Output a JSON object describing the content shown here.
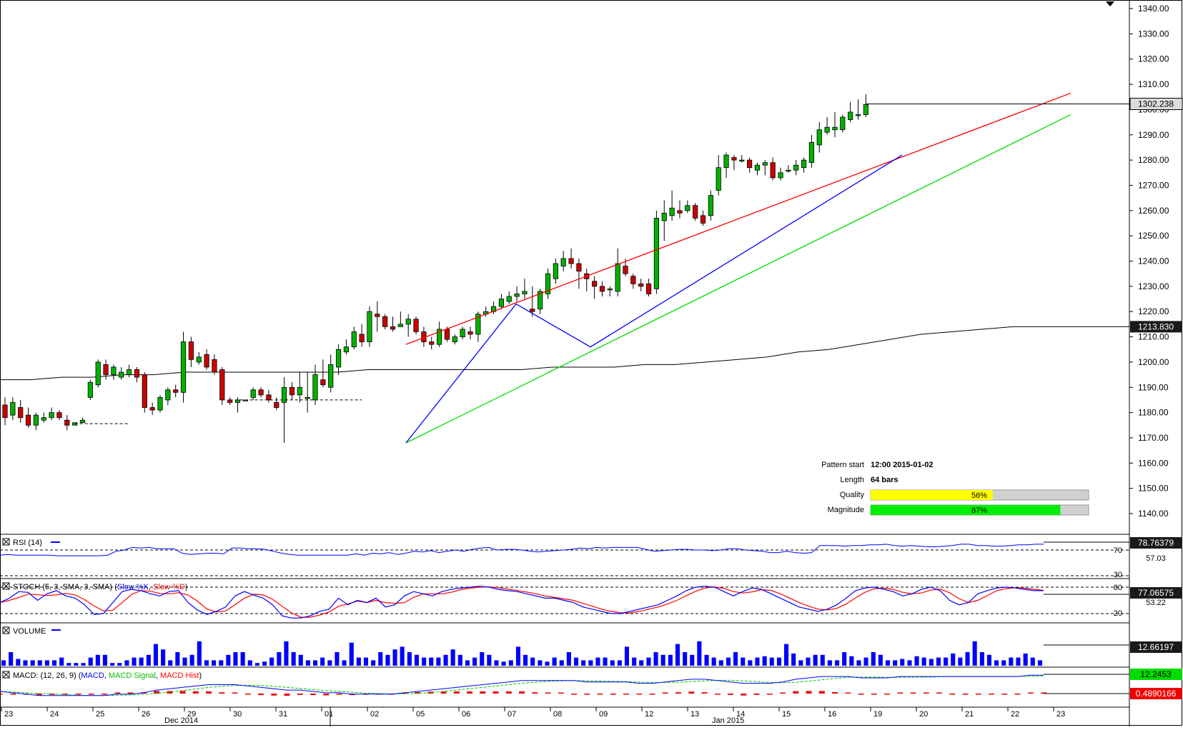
{
  "chart_data": {
    "type": "candlestick",
    "instrument_price_label": "1302.238",
    "ma_label": "1213.830",
    "y_ticks": [
      "1340.00",
      "1330.00",
      "1320.00",
      "1310.00",
      "1300.00",
      "1290.00",
      "1280.00",
      "1270.00",
      "1260.00",
      "1250.00",
      "1240.00",
      "1230.00",
      "1220.00",
      "1210.00",
      "1200.00",
      "1190.00",
      "1180.00",
      "1170.00",
      "1160.00",
      "1150.00",
      "1140.00"
    ],
    "ylim": [
      1136,
      1343
    ],
    "x_ticks": [
      "23",
      "24",
      "25",
      "26",
      "29",
      "30",
      "31",
      "01",
      "02",
      "05",
      "06",
      "07",
      "08",
      "09",
      "12",
      "13",
      "14",
      "15",
      "16",
      "19",
      "20",
      "21",
      "22",
      "23"
    ],
    "month_labels": [
      "Dec 2014",
      "Jan 2015"
    ],
    "candles": [
      [
        1183,
        1178,
        1186,
        1175
      ],
      [
        1179,
        1184,
        1186,
        1177
      ],
      [
        1182,
        1178,
        1185,
        1176
      ],
      [
        1179,
        1175,
        1182,
        1174
      ],
      [
        1175,
        1179,
        1180,
        1173
      ],
      [
        1177,
        1178,
        1180,
        1176
      ],
      [
        1178,
        1180,
        1182,
        1177
      ],
      [
        1180,
        1178,
        1181,
        1177
      ],
      [
        1177,
        1175,
        1179,
        1173
      ],
      [
        1175,
        1176,
        1176,
        1175
      ],
      [
        1176,
        1177,
        1178,
        1176
      ],
      [
        1186,
        1192,
        1193,
        1185
      ],
      [
        1191,
        1200,
        1201,
        1190
      ],
      [
        1199,
        1195,
        1201,
        1193
      ],
      [
        1195,
        1198,
        1199,
        1193
      ],
      [
        1194,
        1196,
        1198,
        1193
      ],
      [
        1195,
        1197,
        1199,
        1194
      ],
      [
        1197,
        1194,
        1198,
        1192
      ],
      [
        1195,
        1182,
        1196,
        1180
      ],
      [
        1182,
        1181,
        1184,
        1179
      ],
      [
        1181,
        1186,
        1187,
        1180
      ],
      [
        1185,
        1189,
        1190,
        1183
      ],
      [
        1189,
        1188,
        1191,
        1186
      ],
      [
        1188,
        1208,
        1212,
        1184
      ],
      [
        1208,
        1201,
        1210,
        1198
      ],
      [
        1200,
        1202,
        1204,
        1199
      ],
      [
        1203,
        1198,
        1205,
        1197
      ],
      [
        1201,
        1196,
        1203,
        1195
      ],
      [
        1197,
        1185,
        1198,
        1183
      ],
      [
        1185,
        1184,
        1186,
        1183
      ],
      [
        1184,
        1185,
        1186,
        1180
      ],
      [
        1185,
        1185,
        1185,
        1185
      ],
      [
        1186,
        1189,
        1190,
        1185
      ],
      [
        1189,
        1187,
        1190,
        1186
      ],
      [
        1187,
        1185,
        1189,
        1184
      ],
      [
        1184,
        1182,
        1186,
        1181
      ],
      [
        1184,
        1190,
        1194,
        1168
      ],
      [
        1190,
        1187,
        1192,
        1185
      ],
      [
        1187,
        1190,
        1196,
        1184
      ],
      [
        1186,
        1186,
        1196,
        1180
      ],
      [
        1185,
        1195,
        1199,
        1183
      ],
      [
        1193,
        1191,
        1201,
        1190
      ],
      [
        1190,
        1199,
        1203,
        1188
      ],
      [
        1198,
        1205,
        1207,
        1195
      ],
      [
        1204,
        1206,
        1209,
        1203
      ],
      [
        1206,
        1212,
        1214,
        1205
      ],
      [
        1211,
        1208,
        1215,
        1206
      ],
      [
        1208,
        1220,
        1222,
        1206
      ],
      [
        1219,
        1218,
        1224,
        1212
      ],
      [
        1218,
        1214,
        1219,
        1213
      ],
      [
        1214,
        1213,
        1218,
        1212
      ],
      [
        1214,
        1215,
        1220,
        1214
      ],
      [
        1215,
        1217,
        1219,
        1210
      ],
      [
        1217,
        1212,
        1218,
        1211
      ],
      [
        1212,
        1208,
        1214,
        1206
      ],
      [
        1208,
        1207,
        1210,
        1205
      ],
      [
        1207,
        1213,
        1216,
        1206
      ],
      [
        1213,
        1209,
        1214,
        1208
      ],
      [
        1208,
        1210,
        1211,
        1207
      ],
      [
        1210,
        1213,
        1214,
        1209
      ],
      [
        1212,
        1211,
        1214,
        1209
      ],
      [
        1211,
        1219,
        1220,
        1208
      ],
      [
        1219,
        1220,
        1222,
        1218
      ],
      [
        1220,
        1222,
        1224,
        1219
      ],
      [
        1222,
        1225,
        1227,
        1221
      ],
      [
        1224,
        1226,
        1228,
        1223
      ],
      [
        1226,
        1227,
        1230,
        1224
      ],
      [
        1227,
        1228,
        1233,
        1225
      ],
      [
        1221,
        1220,
        1230,
        1218
      ],
      [
        1221,
        1228,
        1229,
        1219
      ],
      [
        1227,
        1235,
        1237,
        1225
      ],
      [
        1233,
        1239,
        1241,
        1231
      ],
      [
        1238,
        1241,
        1244,
        1236
      ],
      [
        1241,
        1239,
        1245,
        1237
      ],
      [
        1239,
        1236,
        1241,
        1229
      ],
      [
        1235,
        1233,
        1237,
        1228
      ],
      [
        1232,
        1230,
        1234,
        1225
      ],
      [
        1230,
        1228,
        1232,
        1226
      ],
      [
        1229,
        1229,
        1230,
        1226
      ],
      [
        1228,
        1239,
        1245,
        1226
      ],
      [
        1238,
        1235,
        1241,
        1234
      ],
      [
        1234,
        1231,
        1235,
        1229
      ],
      [
        1231,
        1230,
        1233,
        1228
      ],
      [
        1231,
        1227,
        1233,
        1226
      ],
      [
        1229,
        1257,
        1260,
        1227
      ],
      [
        1256,
        1259,
        1264,
        1248
      ],
      [
        1258,
        1261,
        1268,
        1256
      ],
      [
        1260,
        1259,
        1264,
        1257
      ],
      [
        1260,
        1262,
        1264,
        1259
      ],
      [
        1262,
        1257,
        1263,
        1256
      ],
      [
        1258,
        1255,
        1260,
        1254
      ],
      [
        1258,
        1266,
        1268,
        1256
      ],
      [
        1268,
        1277,
        1282,
        1266
      ],
      [
        1277,
        1282,
        1283,
        1273
      ],
      [
        1281,
        1280,
        1282,
        1276
      ],
      [
        1280,
        1280,
        1282,
        1279
      ],
      [
        1280,
        1277,
        1281,
        1275
      ],
      [
        1276,
        1278,
        1279,
        1274
      ],
      [
        1278,
        1279,
        1280,
        1274
      ],
      [
        1279,
        1273,
        1281,
        1272
      ],
      [
        1273,
        1275,
        1277,
        1272
      ],
      [
        1276,
        1276,
        1278,
        1275
      ],
      [
        1276,
        1278,
        1280,
        1274
      ],
      [
        1277,
        1280,
        1281,
        1275
      ],
      [
        1279,
        1287,
        1290,
        1277
      ],
      [
        1286,
        1292,
        1295,
        1283
      ],
      [
        1291,
        1293,
        1297,
        1290
      ],
      [
        1292,
        1293,
        1299,
        1289
      ],
      [
        1292,
        1297,
        1298,
        1291
      ],
      [
        1296,
        1299,
        1303,
        1295
      ],
      [
        1298,
        1298,
        1304,
        1296
      ],
      [
        1298,
        1302,
        1306,
        1297
      ]
    ],
    "ma_values": [
      1193,
      1193,
      1194,
      1194,
      1195,
      1195,
      1196,
      1196,
      1196,
      1196,
      1196,
      1196,
      1197,
      1197,
      1197,
      1197,
      1197,
      1197,
      1198,
      1198,
      1198,
      1199,
      1199,
      1200,
      1201,
      1202,
      1204,
      1205,
      1207,
      1209,
      1211,
      1212,
      1213,
      1214,
      1214
    ],
    "pattern": {
      "start_label": "Pattern start",
      "start_value": "12:00 2015-01-02",
      "length_label": "Length",
      "length_value": "64 bars",
      "quality_label": "Quality",
      "quality": 56,
      "quality_text": "56%",
      "magnitude_label": "Magnitude",
      "magnitude": 87,
      "magnitude_text": "87%"
    },
    "rsi": {
      "label": "RSI (14)",
      "value_label": "78.76379",
      "mid_label": "57.03",
      "level_hi": "70",
      "level_lo": "30",
      "values": [
        62,
        63,
        62,
        62,
        62,
        62,
        62,
        61,
        61,
        61,
        61,
        61,
        61,
        62,
        68,
        70,
        74,
        73,
        74,
        72,
        72,
        72,
        65,
        63,
        64,
        65,
        65,
        64,
        73,
        73,
        72,
        72,
        71,
        68,
        65,
        63,
        62,
        62,
        62,
        62,
        62,
        62,
        62,
        64,
        62,
        65,
        64,
        66,
        63,
        65,
        68,
        67,
        69,
        66,
        68,
        70,
        68,
        71,
        73,
        74,
        70,
        71,
        71,
        70,
        68,
        67,
        68,
        69,
        70,
        71,
        73,
        72,
        74,
        73,
        74,
        74,
        74,
        74,
        71,
        68,
        69,
        70,
        71,
        71,
        70,
        70,
        69,
        70,
        72,
        72,
        70,
        69,
        68,
        66,
        66,
        68,
        66,
        65,
        66,
        77,
        77,
        77,
        76,
        77,
        77,
        78,
        78,
        79,
        77,
        76,
        77,
        76,
        75,
        75,
        76,
        77,
        79,
        79,
        77,
        77,
        76,
        76,
        77,
        78,
        78,
        79,
        79
      ]
    },
    "stoch": {
      "label": "STOCH (5, 3, SMA, 3, SMA)",
      "k_label": "Slow %K",
      "d_label": "Slow %D",
      "value_label": "77.06575",
      "mid_label": "53.22",
      "level_hi": "80",
      "level_lo": "20",
      "k": [
        45,
        55,
        70,
        68,
        50,
        65,
        72,
        60,
        55,
        40,
        18,
        20,
        45,
        70,
        75,
        72,
        65,
        60,
        70,
        72,
        45,
        28,
        18,
        25,
        35,
        60,
        70,
        62,
        55,
        40,
        15,
        10,
        10,
        15,
        25,
        30,
        55,
        40,
        50,
        45,
        55,
        35,
        40,
        60,
        70,
        65,
        60,
        70,
        75,
        78,
        80,
        82,
        80,
        75,
        72,
        70,
        65,
        60,
        55,
        55,
        50,
        45,
        35,
        30,
        25,
        20,
        20,
        25,
        30,
        35,
        40,
        50,
        60,
        72,
        80,
        82,
        80,
        70,
        60,
        70,
        78,
        75,
        65,
        55,
        45,
        35,
        30,
        25,
        30,
        40,
        55,
        72,
        78,
        80,
        75,
        70,
        60,
        65,
        75,
        80,
        72,
        50,
        40,
        45,
        65,
        72,
        78,
        80,
        78,
        75,
        72,
        72
      ]
    },
    "volume": {
      "label": "VOLUME",
      "value_label": "12.66197",
      "bars": [
        0.2,
        0.5,
        0.25,
        0.2,
        0.2,
        0.2,
        0.2,
        0.2,
        0.3,
        0.1,
        0.1,
        0.1,
        0.3,
        0.4,
        0.4,
        0.1,
        0.1,
        0.2,
        0.3,
        0.3,
        0.4,
        0.8,
        0.6,
        0.2,
        0.5,
        0.3,
        0.4,
        0.9,
        0.2,
        0.2,
        0.2,
        0.4,
        0.5,
        0.5,
        0.2,
        0.1,
        0.15,
        0.3,
        0.5,
        0.9,
        0.5,
        0.4,
        0.2,
        0.2,
        0.3,
        0.2,
        0.5,
        0.2,
        0.85,
        0.3,
        0.3,
        0.2,
        0.5,
        0.4,
        0.6,
        0.7,
        0.5,
        0.4,
        0.3,
        0.3,
        0.3,
        0.4,
        0.6,
        0.4,
        0.2,
        0.3,
        0.5,
        0.4,
        0.2,
        0.15,
        0.2,
        0.7,
        0.4,
        0.3,
        0.2,
        0.15,
        0.3,
        0.2,
        0.5,
        0.3,
        0.2,
        0.2,
        0.3,
        0.3,
        0.2,
        0.2,
        0.7,
        0.3,
        0.2,
        0.3,
        0.5,
        0.4,
        0.4,
        0.8,
        0.5,
        0.4,
        0.9,
        0.4,
        0.3,
        0.2,
        0.3,
        0.5,
        0.3,
        0.2,
        0.3,
        0.35,
        0.3,
        0.3,
        0.8,
        0.45,
        0.2,
        0.3,
        0.4,
        0.4,
        0.2,
        0.2,
        0.5,
        0.35,
        0.2,
        0.3,
        0.5,
        0.4,
        0.2,
        0.2,
        0.25,
        0.2,
        0.35,
        0.3,
        0.25,
        0.3,
        0.3,
        0.45,
        0.3,
        0.5,
        0.9,
        0.5,
        0.4,
        0.2,
        0.2,
        0.3,
        0.3,
        0.45,
        0.3,
        0.2
      ]
    },
    "macd": {
      "label": "MACD: (12, 26, 9)",
      "series_label_macd": "MACD",
      "series_label_signal": "MACD Signal",
      "series_label_hist": "MACD Hist",
      "value_macd": "12.2453",
      "value_hist": "0.4890166",
      "macd": [
        0,
        -1,
        -2,
        -3,
        -3,
        -3,
        -3,
        -3,
        -3,
        -2,
        -2,
        -1,
        1,
        2,
        3,
        4,
        5,
        5,
        5,
        4,
        3,
        2,
        1,
        1,
        0,
        -1,
        -1,
        -2,
        -2,
        -2,
        -2,
        -1,
        0,
        1,
        2,
        3,
        4,
        5,
        6,
        7,
        8,
        8,
        8,
        8,
        8,
        7,
        7,
        7,
        7,
        6,
        6,
        7,
        8,
        9,
        9,
        8,
        7,
        6,
        6,
        6,
        7,
        9,
        10,
        11,
        11,
        11,
        10,
        10,
        10,
        11,
        11,
        11,
        11,
        11,
        11,
        11,
        11,
        11,
        11,
        12,
        12
      ]
    },
    "colors": {
      "bull": "#00b200",
      "bear": "#cc0000",
      "upper_line": "#ff0000",
      "lower_line": "#00dd00",
      "zigzag": "#0000ff",
      "quality_fill": "#ffff00",
      "magnitude_fill": "#00ee00",
      "label_bg": "#1a1a1a"
    }
  }
}
